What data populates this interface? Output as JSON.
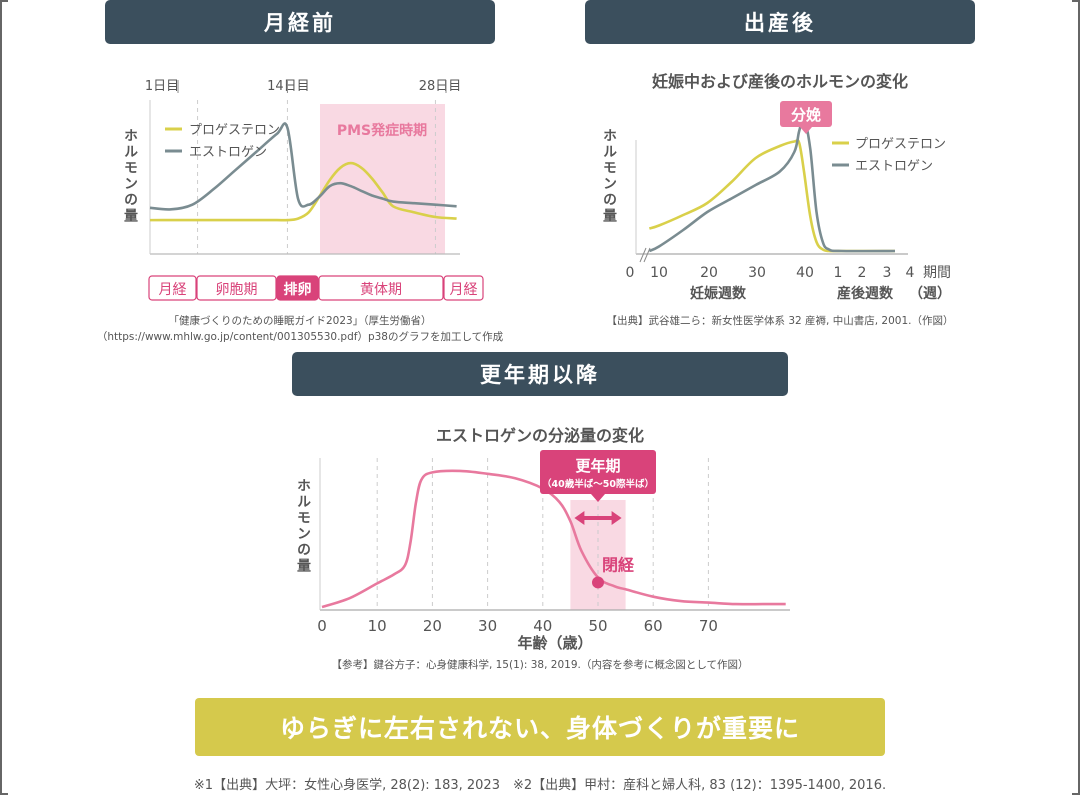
{
  "sections": {
    "premenstrual": "月経前",
    "postpartum": "出産後",
    "menopause": "更年期以降"
  },
  "y_axis_label": "ホルモンの量",
  "colors": {
    "progesterone": "#d9d04a",
    "estrogen": "#7a8c91",
    "pink": "#e8799e",
    "magenta": "#d9437a",
    "navy": "#3b4f5d",
    "shade": "#f9d9e3"
  },
  "chart_data": [
    {
      "type": "line",
      "title": "",
      "top_ticks": [
        "1日目",
        "14日目",
        "28日目"
      ],
      "legend": [
        "プロゲステロン",
        "エストロゲン"
      ],
      "x": [
        1,
        3,
        5,
        7,
        9,
        11,
        13,
        14,
        15,
        16,
        17,
        18,
        19,
        20,
        21,
        22,
        23,
        24,
        26,
        28,
        30
      ],
      "series": [
        {
          "name": "プロゲステロン",
          "values": [
            0.22,
            0.22,
            0.22,
            0.22,
            0.22,
            0.22,
            0.22,
            0.22,
            0.23,
            0.27,
            0.37,
            0.48,
            0.56,
            0.59,
            0.56,
            0.49,
            0.4,
            0.31,
            0.27,
            0.24,
            0.23
          ]
        },
        {
          "name": "エストロゲン",
          "values": [
            0.3,
            0.29,
            0.32,
            0.42,
            0.54,
            0.66,
            0.78,
            0.82,
            0.36,
            0.32,
            0.37,
            0.44,
            0.46,
            0.44,
            0.41,
            0.38,
            0.36,
            0.34,
            0.33,
            0.32,
            0.31
          ]
        }
      ],
      "shaded_region_label": "PMS発症時期",
      "phases": [
        "月経",
        "卵胞期",
        "排卵",
        "黄体期",
        "月経"
      ],
      "source_lines": [
        "「健康づくりのための睡眠ガイド2023」（厚生労働省）",
        "（https://www.mhlw.go.jp/content/001305530.pdf）p38のグラフを加工して作成"
      ]
    },
    {
      "type": "line",
      "title": "妊娠中および産後のホルモンの変化",
      "marker_label": "分娩",
      "legend": [
        "プロゲステロン",
        "エストロゲン"
      ],
      "x_ticks_pregnancy": [
        "0",
        "10",
        "20",
        "30",
        "40"
      ],
      "x_ticks_postpartum": [
        "1",
        "2",
        "3",
        "4"
      ],
      "xlabel_pregnancy": "妊娠週数",
      "xlabel_postpartum": "産後週数",
      "xlabel_unit": "期間",
      "xlabel_unit2": "（週）",
      "x": [
        8,
        10,
        15,
        20,
        25,
        30,
        35,
        38,
        39,
        40,
        40.5,
        41,
        41.5,
        42,
        43,
        48
      ],
      "series": [
        {
          "name": "プロゲステロン",
          "values": [
            0.17,
            0.19,
            0.26,
            0.34,
            0.48,
            0.64,
            0.72,
            0.75,
            0.74,
            0.55,
            0.25,
            0.08,
            0.03,
            0.02,
            0.02,
            0.02
          ]
        },
        {
          "name": "エストロゲン",
          "values": [
            0.02,
            0.05,
            0.16,
            0.28,
            0.37,
            0.46,
            0.55,
            0.68,
            0.82,
            0.9,
            0.7,
            0.28,
            0.08,
            0.03,
            0.02,
            0.02
          ]
        }
      ],
      "source": "【出典】武谷雄二ら：新女性医学体系 32 産褥, 中山書店, 2001.（作図）"
    },
    {
      "type": "line",
      "title": "エストロゲンの分泌量の変化",
      "xlabel": "年齢（歳）",
      "x_ticks": [
        "0",
        "10",
        "20",
        "30",
        "40",
        "50",
        "60",
        "70"
      ],
      "x": [
        0,
        5,
        10,
        13,
        15,
        16,
        17,
        18,
        20,
        25,
        30,
        35,
        40,
        43,
        45,
        47,
        50,
        53,
        55,
        60,
        65,
        70,
        75,
        80,
        84
      ],
      "values": [
        0.02,
        0.08,
        0.18,
        0.24,
        0.3,
        0.45,
        0.72,
        0.88,
        0.93,
        0.94,
        0.92,
        0.89,
        0.82,
        0.73,
        0.6,
        0.4,
        0.22,
        0.16,
        0.14,
        0.09,
        0.06,
        0.05,
        0.04,
        0.04,
        0.04
      ],
      "range_label": "更年期",
      "range_sublabel": "（40歳半ば〜50際半ば）",
      "point_label": "閉経",
      "point_x": 50,
      "range": [
        45,
        55
      ],
      "source": "【参考】鍵谷方子：心身健康科学, 15(1): 38, 2019.（内容を参考に概念図として作図）"
    }
  ],
  "banner": "ゆらぎに左右されない、身体づくりが重要に",
  "footnote": "※1【出典】大坪：女性心身医学, 28(2): 183, 2023　※2【出典】甲村：産科と婦人科, 83 (12)：1395-1400, 2016."
}
